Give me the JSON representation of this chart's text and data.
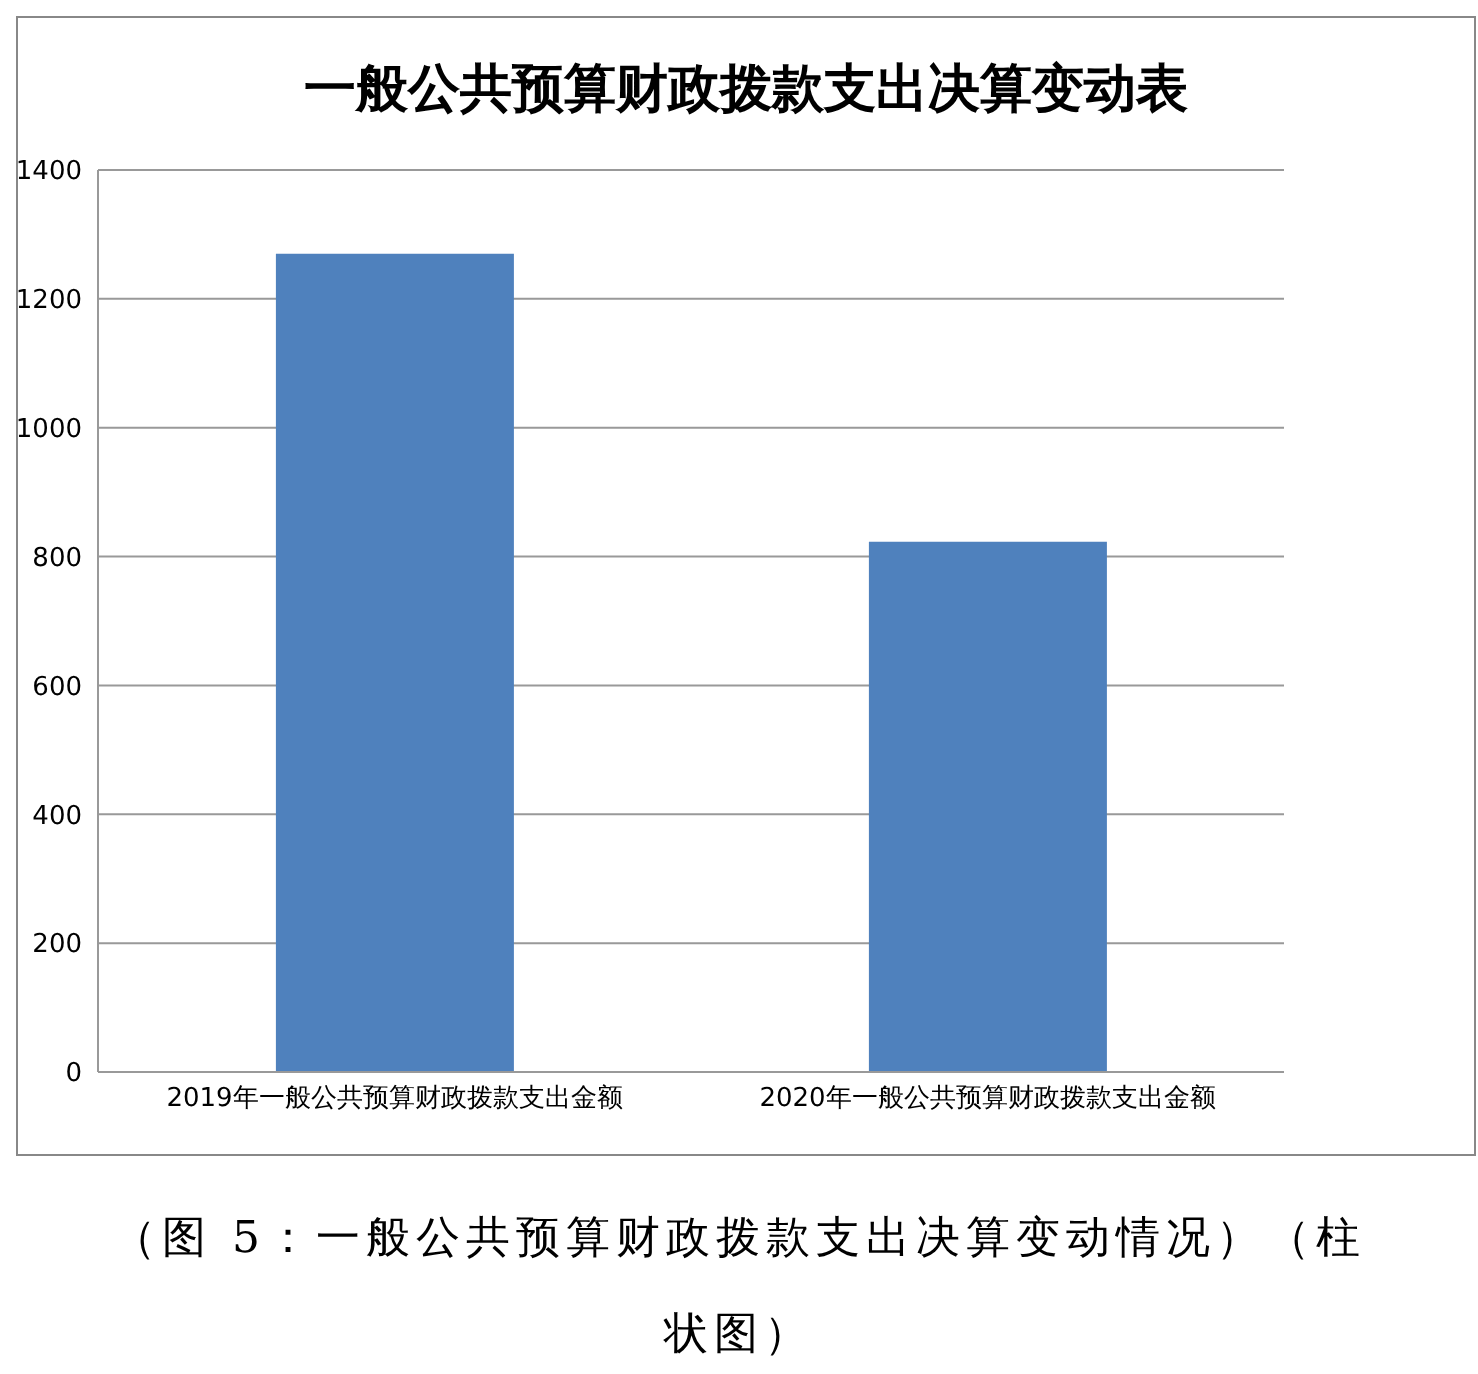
{
  "chart_data": {
    "type": "bar",
    "title": "一般公共预算财政拨款支出决算变动表",
    "categories": [
      "2019年一般公共预算财政拨款支出金额",
      "2020年一般公共预算财政拨款支出金额"
    ],
    "values": [
      1270,
      823
    ],
    "color": "#4f81bd",
    "ylim": [
      0,
      1400
    ],
    "yticks": [
      0,
      200,
      400,
      600,
      800,
      1000,
      1200,
      1400
    ],
    "grid": "y",
    "legend": false,
    "annotations": [
      "（图 5：一般公共预算财政拨款支出决算变动情况）（柱状图）"
    ]
  }
}
